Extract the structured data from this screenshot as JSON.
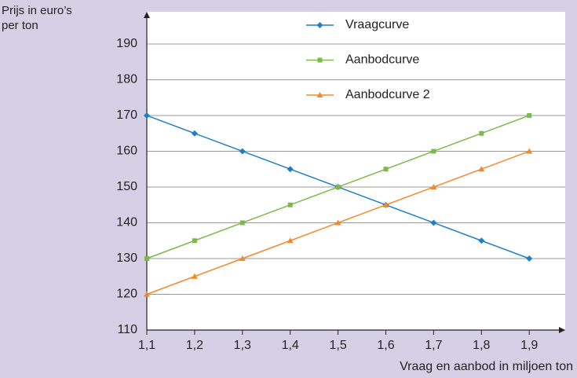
{
  "chart_data": {
    "type": "line",
    "ylabel": [
      "Prijs in euro’s",
      "per ton"
    ],
    "xlabel": "Vraag en aanbod in miljoen ton",
    "categories": [
      "1,1",
      "1,2",
      "1,3",
      "1,4",
      "1,5",
      "1,6",
      "1,7",
      "1,8",
      "1,9"
    ],
    "series": [
      {
        "name": "Vraagcurve",
        "color": "#1f7fc4",
        "marker": "diamond",
        "values": [
          170,
          165,
          160,
          155,
          150,
          145,
          140,
          135,
          130
        ]
      },
      {
        "name": "Aanbodcurve",
        "color": "#7cb84a",
        "marker": "square",
        "values": [
          130,
          135,
          140,
          145,
          150,
          155,
          160,
          165,
          170
        ]
      },
      {
        "name": "Aanbodcurve 2",
        "color": "#f28a2a",
        "marker": "triangle",
        "values": [
          120,
          125,
          130,
          135,
          140,
          145,
          150,
          155,
          160
        ]
      }
    ],
    "ylim": [
      110,
      199
    ],
    "yticks": [
      110,
      120,
      130,
      140,
      150,
      160,
      170,
      180,
      190
    ],
    "grid": true
  }
}
